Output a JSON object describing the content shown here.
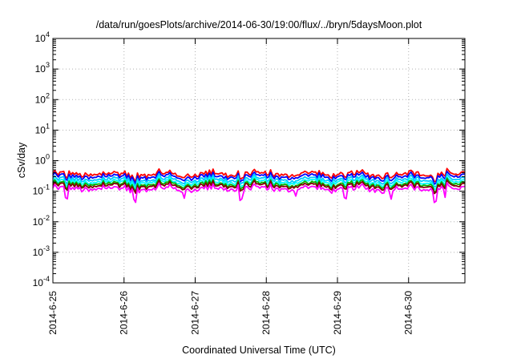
{
  "chart_data": {
    "type": "line",
    "title": "/data/run/goesPlots/archive/2014-06-30/19:00/flux/../bryn/5daysMoon.plot",
    "xlabel": "Coordinated Universal Time (UTC)",
    "ylabel": "cSv/day",
    "y_scale": "log",
    "ylim": [
      0.0001,
      10000
    ],
    "y_ticks": [
      {
        "base": "10",
        "exp": "-4",
        "value": 0.0001
      },
      {
        "base": "10",
        "exp": "-3",
        "value": 0.001
      },
      {
        "base": "10",
        "exp": "-2",
        "value": 0.01
      },
      {
        "base": "10",
        "exp": "-1",
        "value": 0.1
      },
      {
        "base": "10",
        "exp": "0",
        "value": 1
      },
      {
        "base": "10",
        "exp": "1",
        "value": 10
      },
      {
        "base": "10",
        "exp": "2",
        "value": 100
      },
      {
        "base": "10",
        "exp": "3",
        "value": 1000
      },
      {
        "base": "10",
        "exp": "4",
        "value": 10000
      }
    ],
    "xlim": [
      "2014-06-25",
      "2014-06-30 19:00"
    ],
    "x_ticks": [
      "2014-6-25",
      "2014-6-26",
      "2014-6-27",
      "2014-6-28",
      "2014-6-29",
      "2014-6-30"
    ],
    "grid": true,
    "legend": "none",
    "series": [
      {
        "color": "#ff0000",
        "baseline": 0.36
      },
      {
        "color": "#0000ff",
        "baseline": 0.3
      },
      {
        "color": "#00c8ff",
        "baseline": 0.24
      },
      {
        "color": "#00ffff",
        "baseline": 0.2
      },
      {
        "color": "#00b400",
        "baseline": 0.17
      },
      {
        "color": "#800000",
        "baseline": 0.15
      },
      {
        "color": "#ff00ff",
        "baseline": 0.12
      }
    ]
  }
}
